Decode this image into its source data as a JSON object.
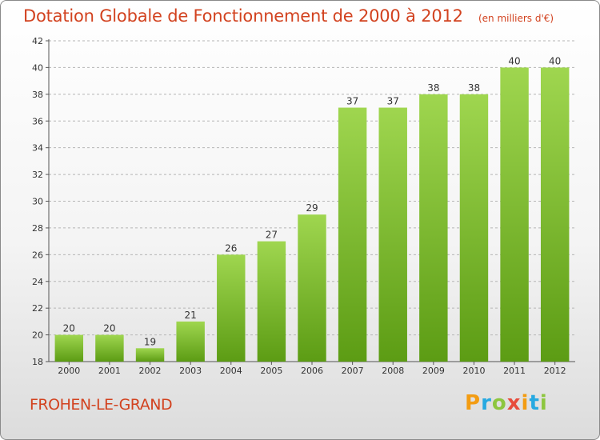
{
  "title": "Dotation Globale de Fonctionnement de 2000 à 2012",
  "subtitle": "(en milliers d'€)",
  "place_name": "FROHEN-LE-GRAND",
  "logo": {
    "letters": [
      "P",
      "r",
      "o",
      "x",
      "i",
      "t",
      "i"
    ],
    "colors": [
      "#f39c12",
      "#27a9e1",
      "#8dc63f",
      "#e74c3c",
      "#f39c12",
      "#27a9e1",
      "#8dc63f"
    ]
  },
  "colors": {
    "accent": "#d2421f",
    "bar_top": "#9fd64f",
    "bar_bottom": "#5c9c14",
    "grid": "#b5b5b5"
  },
  "chart_data": {
    "type": "bar",
    "title": "Dotation Globale de Fonctionnement de 2000 à 2012",
    "subtitle": "(en milliers d'€)",
    "xlabel": "",
    "ylabel": "",
    "categories": [
      "2000",
      "2001",
      "2002",
      "2003",
      "2004",
      "2005",
      "2006",
      "2007",
      "2008",
      "2009",
      "2010",
      "2011",
      "2012"
    ],
    "values": [
      20,
      20,
      19,
      21,
      26,
      27,
      29,
      37,
      37,
      38,
      38,
      40,
      40
    ],
    "ylim": [
      18,
      42
    ],
    "yticks": [
      18,
      20,
      22,
      24,
      26,
      28,
      30,
      32,
      34,
      36,
      38,
      40,
      42
    ],
    "grid": "horizontal dashed",
    "legend": "none"
  }
}
